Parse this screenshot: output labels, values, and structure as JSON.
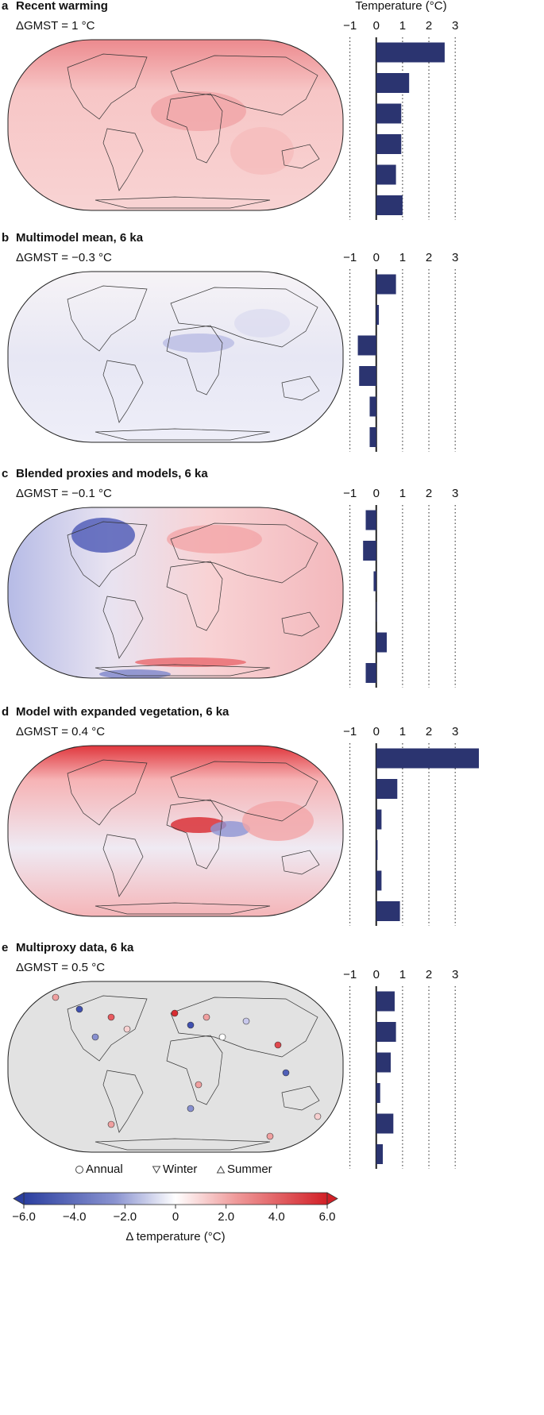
{
  "chart_data": [
    {
      "type": "bar",
      "orientation": "horizontal",
      "panel": "a",
      "title": "Recent warming",
      "subtitle": "ΔGMST = 1 °C",
      "xlabel": "Temperature (°C)",
      "xlim": [
        -1.2,
        3.9
      ],
      "xticks": [
        {
          "value": -1,
          "label": "−1"
        },
        0,
        1,
        2,
        3
      ],
      "color": "#2b3470",
      "values": [
        2.6,
        1.25,
        0.95,
        0.95,
        0.75,
        1.0
      ]
    },
    {
      "type": "bar",
      "orientation": "horizontal",
      "panel": "b",
      "title": "Multimodel mean, 6 ka",
      "subtitle": "ΔGMST = −0.3 °C",
      "xlim": [
        -1.2,
        3.9
      ],
      "xticks": [
        {
          "value": -1,
          "label": "−1"
        },
        0,
        1,
        2,
        3
      ],
      "color": "#2b3470",
      "values": [
        0.75,
        0.1,
        -0.7,
        -0.65,
        -0.25,
        -0.25
      ]
    },
    {
      "type": "bar",
      "orientation": "horizontal",
      "panel": "c",
      "title": "Blended proxies and models, 6 ka",
      "subtitle": "ΔGMST = −0.1 °C",
      "xlim": [
        -1.2,
        3.9
      ],
      "xticks": [
        {
          "value": -1,
          "label": "−1"
        },
        0,
        1,
        2,
        3
      ],
      "color": "#2b3470",
      "values": [
        -0.4,
        -0.5,
        -0.1,
        0.02,
        0.4,
        -0.4
      ]
    },
    {
      "type": "bar",
      "orientation": "horizontal",
      "panel": "d",
      "title": "Model with expanded vegetation, 6 ka",
      "subtitle": "ΔGMST = 0.4 °C",
      "xlim": [
        -1.2,
        3.9
      ],
      "xticks": [
        {
          "value": -1,
          "label": "−1"
        },
        0,
        1,
        2,
        3
      ],
      "color": "#2b3470",
      "values": [
        3.9,
        0.8,
        0.2,
        0.05,
        0.2,
        0.9
      ]
    },
    {
      "type": "bar",
      "orientation": "horizontal",
      "panel": "e",
      "title": "Multiproxy data, 6 ka",
      "subtitle": "ΔGMST = 0.5 °C",
      "xlim": [
        -1.2,
        3.9
      ],
      "xticks": [
        {
          "value": -1,
          "label": "−1"
        },
        0,
        1,
        2,
        3
      ],
      "color": "#2b3470",
      "values": [
        0.7,
        0.75,
        0.55,
        0.15,
        0.65,
        0.25
      ],
      "legend": [
        "Annual",
        "Winter",
        "Summer"
      ]
    }
  ],
  "colorbar": {
    "label": "Δ temperature (°C)",
    "lim": [
      -6,
      6
    ],
    "ticks": [
      {
        "value": -6,
        "label": "−6.0"
      },
      {
        "value": -4,
        "label": "−4.0"
      },
      {
        "value": -2,
        "label": "−2.0"
      },
      0,
      {
        "value": 2,
        "label": "2.0"
      },
      {
        "value": 4,
        "label": "4.0"
      },
      {
        "value": 6,
        "label": "6.0"
      }
    ]
  }
}
